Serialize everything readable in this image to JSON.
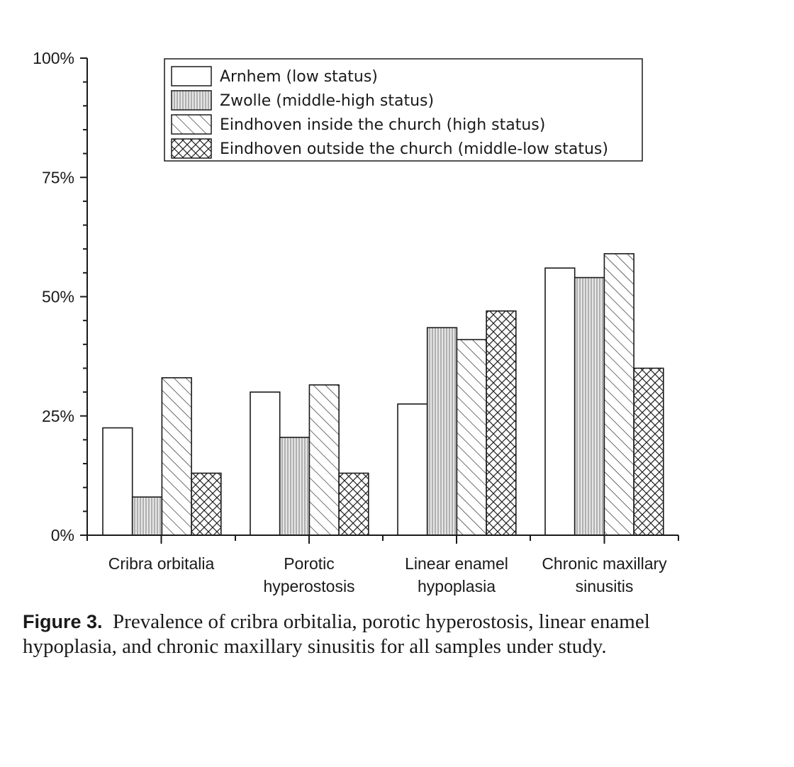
{
  "chart_data": {
    "type": "bar",
    "categories": [
      [
        "Cribra orbitalia"
      ],
      [
        "Porotic",
        "hyperostosis"
      ],
      [
        "Linear enamel",
        "hypoplasia"
      ],
      [
        "Chronic maxillary",
        "sinusitis"
      ]
    ],
    "series": [
      {
        "name": "Arnhem (low status)",
        "pattern": "none",
        "values": [
          22.5,
          30.0,
          27.5,
          56.0
        ]
      },
      {
        "name": "Zwolle (middle-high status)",
        "pattern": "vertical-lines",
        "values": [
          8.0,
          20.5,
          43.5,
          54.0
        ]
      },
      {
        "name": "Eindhoven inside the church (high status)",
        "pattern": "diagonal-lines",
        "values": [
          33.0,
          31.5,
          41.0,
          59.0
        ]
      },
      {
        "name": "Eindhoven outside the church (middle-low status)",
        "pattern": "crosshatch",
        "values": [
          13.0,
          13.0,
          47.0,
          35.0
        ]
      }
    ],
    "yticks": [
      "0%",
      "25%",
      "50%",
      "75%",
      "100%"
    ],
    "ylim": [
      0,
      100
    ],
    "legend_position": "top",
    "grid": false
  },
  "caption": {
    "label": "Figure 3.",
    "text": "Prevalence of cribra orbitalia, porotic hyperostosis, linear enamel hypoplasia, and chronic maxillary sinusitis for all samples under study."
  }
}
